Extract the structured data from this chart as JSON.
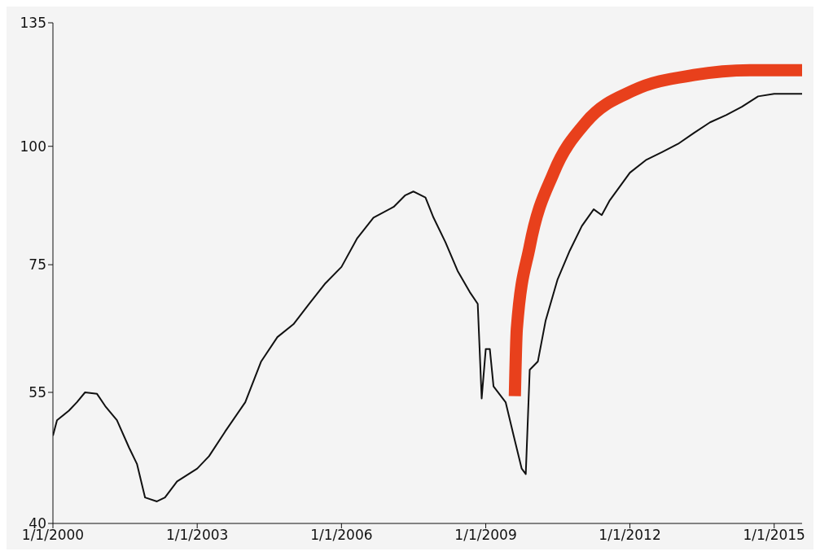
{
  "chart_data": {
    "type": "line",
    "log": true,
    "grid": false,
    "legend": false,
    "marker": "none",
    "line_style": "solid",
    "xlim": [
      "2000-01-01",
      "2015-08-01"
    ],
    "xticks": [
      {
        "value": "2000-01-01",
        "label": "1/1/2000"
      },
      {
        "value": "2003-01-01",
        "label": "1/1/2003"
      },
      {
        "value": "2006-01-01",
        "label": "1/1/2006"
      },
      {
        "value": "2009-01-01",
        "label": "1/1/2009"
      },
      {
        "value": "2012-01-01",
        "label": "1/1/2012"
      },
      {
        "value": "2015-01-01",
        "label": "1/1/2015"
      }
    ],
    "ylim": [
      40,
      135
    ],
    "yticks": [
      40,
      55,
      75,
      100,
      135
    ],
    "series": [
      {
        "color": "#111111",
        "x": [
          "2000-01",
          "2000-02",
          "2000-05",
          "2000-07",
          "2000-09",
          "2000-12",
          "2001-02",
          "2001-05",
          "2001-08",
          "2001-10",
          "2001-12",
          "2002-03",
          "2002-05",
          "2002-08",
          "2003-01",
          "2003-04",
          "2003-08",
          "2004-01",
          "2004-05",
          "2004-09",
          "2005-01",
          "2005-05",
          "2005-09",
          "2006-01",
          "2006-05",
          "2006-09",
          "2007-02",
          "2007-05",
          "2007-07",
          "2007-10",
          "2007-12",
          "2008-03",
          "2008-06",
          "2008-09",
          "2008-11",
          "2008-12",
          "2009-01",
          "2009-02",
          "2009-03",
          "2009-06",
          "2009-08",
          "2009-10",
          "2009-11",
          "2009-12",
          "2010-02",
          "2010-04",
          "2010-07",
          "2010-10",
          "2011-01",
          "2011-04",
          "2011-06",
          "2011-08",
          "2012-01",
          "2012-05",
          "2012-09",
          "2013-01",
          "2013-05",
          "2013-09",
          "2014-01",
          "2014-05",
          "2014-09",
          "2015-01",
          "2015-05",
          "2015-08"
        ],
        "values": [
          49.5,
          51.4,
          52.6,
          53.7,
          55,
          54.8,
          53.2,
          51.4,
          48.1,
          46.2,
          42.6,
          42.2,
          42.6,
          44.3,
          45.7,
          47.1,
          50,
          53.7,
          59.3,
          62.9,
          64.9,
          68.2,
          71.7,
          74.6,
          80,
          84.1,
          86.3,
          88.8,
          89.6,
          88.3,
          84.1,
          79.2,
          73.9,
          70.2,
          68.2,
          54.2,
          61.1,
          61.1,
          55.8,
          53.7,
          49.5,
          45.7,
          45.1,
          58.1,
          59.3,
          65.5,
          72.4,
          77.6,
          82.4,
          85.8,
          84.6,
          87.7,
          93.8,
          96.7,
          98.6,
          100.6,
          103.3,
          106,
          107.9,
          110.1,
          112.9,
          113.6,
          113.6,
          113.6
        ]
      },
      {
        "color": "#e8401c",
        "x": [
          "2009-08-10",
          "2009-08-25",
          "2009-12",
          "2010-06",
          "2011-02",
          "2012-02",
          "2013-05",
          "2014-07",
          "2015-08"
        ],
        "values": [
          54.5,
          64.2,
          78.4,
          93.8,
          106,
          114.6,
          118.9,
          120.3,
          120.3
        ]
      }
    ]
  }
}
